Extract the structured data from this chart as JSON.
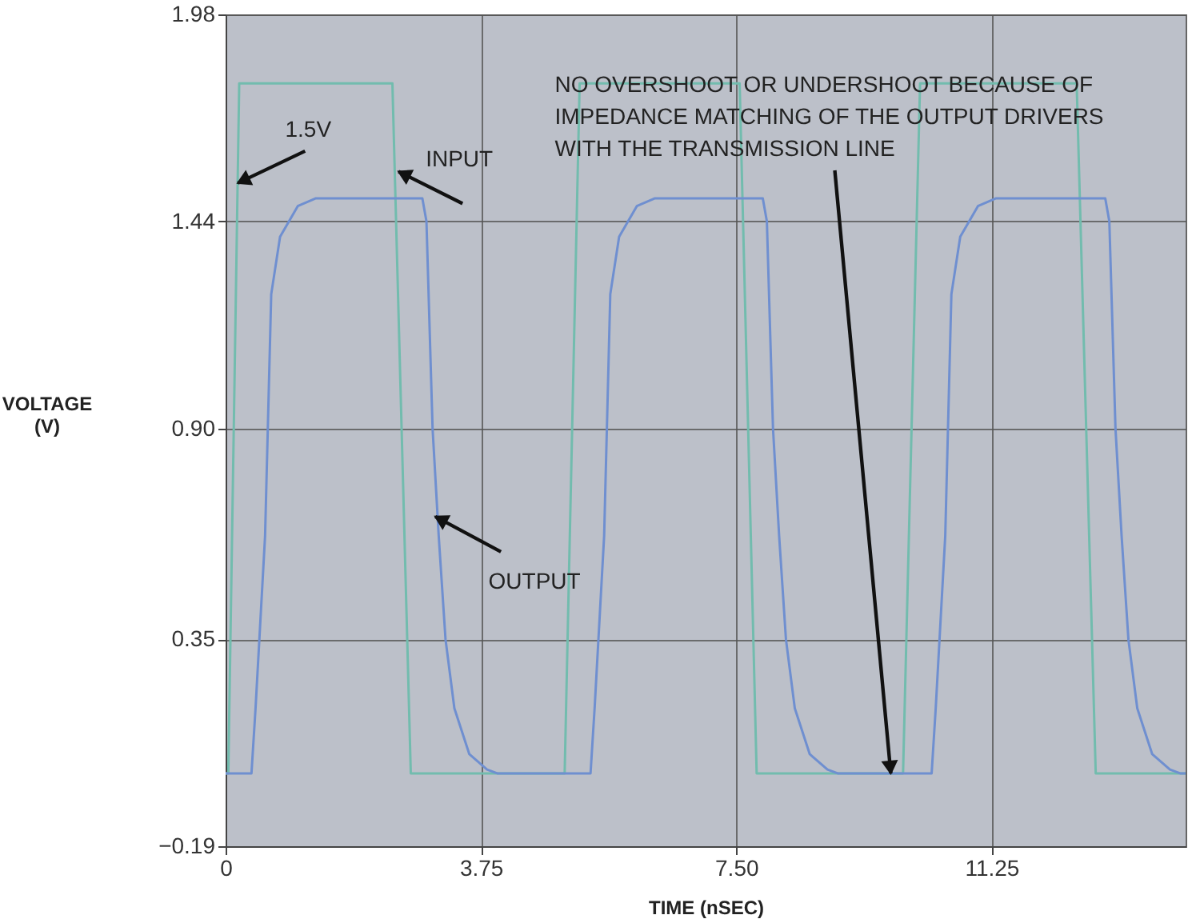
{
  "chart_data": {
    "type": "line",
    "xlabel": "TIME (nSEC)",
    "ylabel": "VOLTAGE (V)",
    "xlim": [
      0,
      14.1
    ],
    "ylim": [
      -0.19,
      1.98
    ],
    "xticks": [
      0,
      3.75,
      {
        "value": 7.5,
        "label": "7.50"
      },
      11.25
    ],
    "yticks": [
      {
        "value": -0.19,
        "label": "−0.19"
      },
      0.35,
      {
        "value": 0.9,
        "label": "0.90"
      },
      1.44,
      1.98
    ],
    "grid": true,
    "marker": "none",
    "line_style": "solid",
    "series": [
      {
        "color": "#72bcae",
        "x": [
          0,
          0.04,
          0.2,
          2.45,
          2.72,
          4.98,
          5.2,
          7.55,
          7.8,
          9.95,
          10.2,
          12.5,
          12.78,
          14.1
        ],
        "values": [
          0,
          0,
          1.8,
          1.8,
          0,
          0,
          1.8,
          1.8,
          0,
          0,
          1.8,
          1.8,
          0,
          0
        ]
      },
      {
        "color": "#6f8fd0",
        "x": [
          0,
          0.38,
          0.44,
          0.58,
          0.67,
          0.8,
          1.06,
          1.32,
          2.89,
          2.95,
          3.04,
          3.13,
          3.23,
          3.36,
          3.58,
          3.84,
          3.99,
          5.36,
          5.42,
          5.56,
          5.65,
          5.78,
          6.04,
          6.3,
          7.89,
          7.95,
          8.04,
          8.13,
          8.23,
          8.36,
          8.58,
          8.84,
          8.99,
          10.37,
          10.43,
          10.57,
          10.66,
          10.79,
          11.05,
          11.31,
          12.92,
          12.98,
          13.07,
          13.16,
          13.26,
          13.39,
          13.61,
          13.87,
          14.02,
          14.1
        ],
        "values": [
          0,
          0,
          0.17,
          0.62,
          1.25,
          1.4,
          1.48,
          1.5,
          1.5,
          1.44,
          0.9,
          0.62,
          0.35,
          0.17,
          0.05,
          0.01,
          0,
          0,
          0.17,
          0.62,
          1.25,
          1.4,
          1.48,
          1.5,
          1.5,
          1.44,
          0.9,
          0.62,
          0.35,
          0.17,
          0.05,
          0.01,
          0,
          0,
          0.17,
          0.62,
          1.25,
          1.4,
          1.48,
          1.5,
          1.5,
          1.44,
          0.9,
          0.62,
          0.35,
          0.17,
          0.05,
          0.01,
          0,
          0
        ]
      }
    ],
    "annotations": [
      {
        "text": "1.5V",
        "x": 0.18,
        "y": 1.54
      },
      {
        "text": "INPUT",
        "x": 2.54,
        "y": 1.57
      },
      {
        "text": "OUTPUT",
        "x": 3.08,
        "y": 0.67
      },
      {
        "text": "NO OVERSHOOT OR UNDERSHOOT BECAUSE OF IMPEDANCE MATCHING OF THE OUTPUT DRIVERS WITH THE TRANSMISSION LINE",
        "x": 9.77,
        "y": 0.0
      }
    ]
  }
}
